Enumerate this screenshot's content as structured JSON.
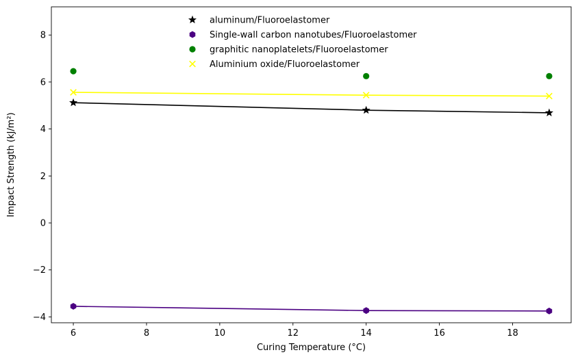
{
  "chart_data": {
    "type": "scatter",
    "xlabel": "Curing Temperature (°C)",
    "ylabel": "Impact Strength (kJ/m²)",
    "xlim": [
      5.4,
      19.6
    ],
    "ylim": [
      -4.25,
      9.2
    ],
    "xticks": [
      6,
      8,
      10,
      12,
      14,
      16,
      18
    ],
    "yticks": [
      -4,
      -2,
      0,
      2,
      4,
      6,
      8
    ],
    "xtick_labels": [
      "6",
      "8",
      "10",
      "12",
      "14",
      "16",
      "18"
    ],
    "ytick_labels": [
      "−4",
      "−2",
      "0",
      "2",
      "4",
      "6",
      "8"
    ],
    "grid": false,
    "legend_position": "upper center",
    "x": [
      6,
      14,
      19
    ],
    "series": [
      {
        "name": "aluminum/Fluoroelastomer",
        "values": [
          5.12,
          4.8,
          4.69
        ],
        "color": "#000000",
        "marker": "star",
        "line": true
      },
      {
        "name": "Single-wall carbon nanotubes/Fluoroelastomer",
        "values": [
          -3.55,
          -3.73,
          -3.75
        ],
        "color": "#4b0082",
        "marker": "hexagon",
        "line": true
      },
      {
        "name": "graphitic nanoplatelets/Fluoroelastomer",
        "values": [
          6.46,
          6.25,
          6.25
        ],
        "color": "#008000",
        "marker": "circle",
        "line": false
      },
      {
        "name": "Aluminium oxide/Fluoroelastomer",
        "values": [
          5.56,
          5.44,
          5.4
        ],
        "color": "#ffff00",
        "marker": "x",
        "line": true
      }
    ]
  }
}
